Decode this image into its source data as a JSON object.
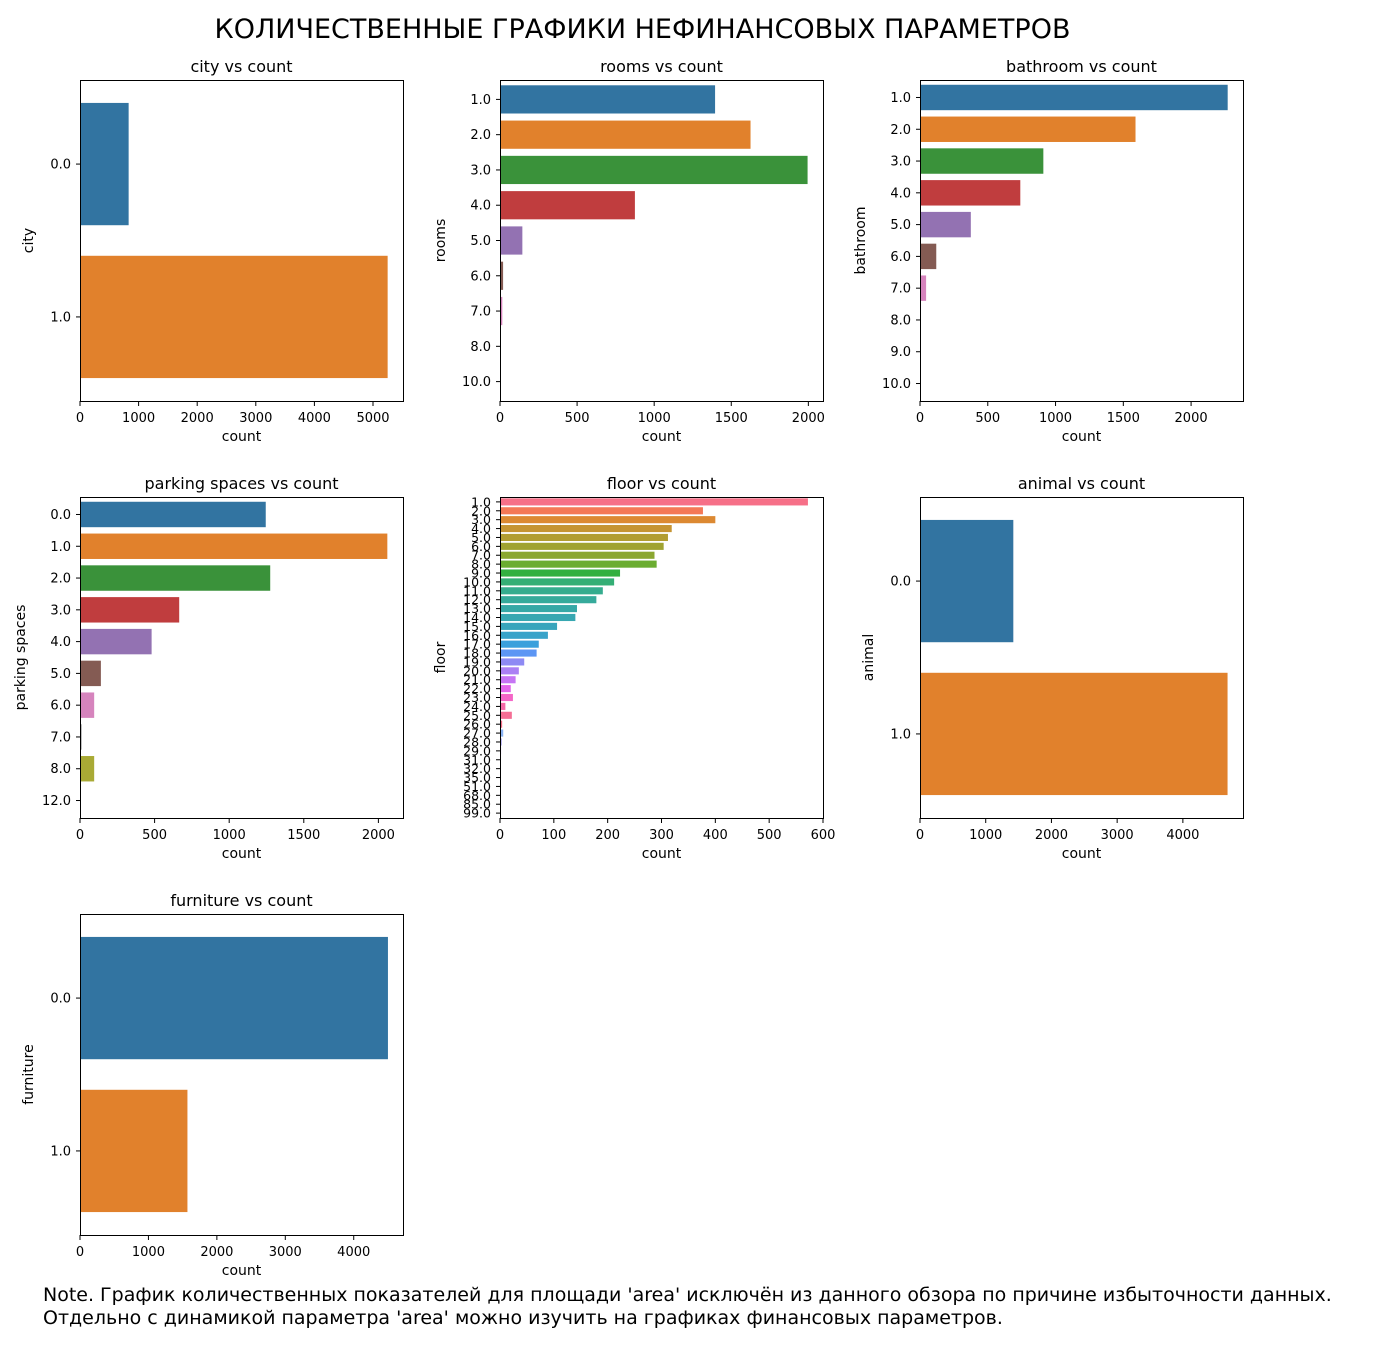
{
  "title": "КОЛИЧЕСТВЕННЫЕ ГРАФИКИ НЕФИНАНСОВЫХ ПАРАМЕТРОВ",
  "note_line1": "Note. График количественных показателей для площади 'area' исключён из данного обзора по причине избыточности данных.",
  "note_line2": "Отдельно с динамикой параметра 'area' можно изучить на графиках финансовых параметров.",
  "chart_data": [
    {
      "type": "bar",
      "orientation": "horizontal",
      "title": "city vs count",
      "xlabel": "count",
      "ylabel": "city",
      "categories": [
        "0.0",
        "1.0"
      ],
      "values": [
        830,
        5250
      ],
      "colors": [
        "#3274a1",
        "#e1812c"
      ],
      "xlim": [
        0,
        5512
      ],
      "xticks": [
        0,
        1000,
        2000,
        3000,
        4000,
        5000
      ],
      "grid": false
    },
    {
      "type": "bar",
      "orientation": "horizontal",
      "title": "rooms vs count",
      "xlabel": "count",
      "ylabel": "rooms",
      "categories": [
        "1.0",
        "2.0",
        "3.0",
        "4.0",
        "5.0",
        "6.0",
        "7.0",
        "8.0",
        "10.0"
      ],
      "values": [
        1395,
        1625,
        1995,
        875,
        145,
        20,
        15,
        3,
        2
      ],
      "colors": [
        "#3274a1",
        "#e1812c",
        "#3a923a",
        "#c03d3e",
        "#9372b2",
        "#845b53",
        "#d684bd",
        "#7f7f7f",
        "#a9aa35"
      ],
      "xlim": [
        0,
        2095
      ],
      "xticks": [
        0,
        500,
        1000,
        1500,
        2000
      ],
      "grid": false
    },
    {
      "type": "bar",
      "orientation": "horizontal",
      "title": "bathroom vs count",
      "xlabel": "count",
      "ylabel": "bathroom",
      "categories": [
        "1.0",
        "2.0",
        "3.0",
        "4.0",
        "5.0",
        "6.0",
        "7.0",
        "8.0",
        "9.0",
        "10.0"
      ],
      "values": [
        2270,
        1590,
        910,
        740,
        375,
        120,
        45,
        3,
        2,
        1
      ],
      "colors": [
        "#3274a1",
        "#e1812c",
        "#3a923a",
        "#c03d3e",
        "#9372b2",
        "#845b53",
        "#d684bd",
        "#7f7f7f",
        "#a9aa35",
        "#2ebece"
      ],
      "xlim": [
        0,
        2383
      ],
      "xticks": [
        0,
        500,
        1000,
        1500,
        2000
      ],
      "grid": false
    },
    {
      "type": "bar",
      "orientation": "horizontal",
      "title": "parking spaces vs count",
      "xlabel": "count",
      "ylabel": "parking spaces",
      "categories": [
        "0.0",
        "1.0",
        "2.0",
        "3.0",
        "4.0",
        "5.0",
        "6.0",
        "7.0",
        "8.0",
        "12.0"
      ],
      "values": [
        1245,
        2060,
        1275,
        665,
        480,
        140,
        95,
        10,
        95,
        2
      ],
      "colors": [
        "#3274a1",
        "#e1812c",
        "#3a923a",
        "#c03d3e",
        "#9372b2",
        "#845b53",
        "#d684bd",
        "#7f7f7f",
        "#a9aa35",
        "#2ebece"
      ],
      "xlim": [
        0,
        2165
      ],
      "xticks": [
        0,
        500,
        1000,
        1500,
        2000
      ],
      "grid": false
    },
    {
      "type": "bar",
      "orientation": "horizontal",
      "title": "floor vs count",
      "xlabel": "count",
      "ylabel": "floor",
      "categories": [
        "1.0",
        "2.0",
        "3.0",
        "4.0",
        "5.0",
        "6.0",
        "7.0",
        "8.0",
        "9.0",
        "10.0",
        "11.0",
        "12.0",
        "13.0",
        "14.0",
        "15.0",
        "16.0",
        "17.0",
        "18.0",
        "19.0",
        "20.0",
        "21.0",
        "22.0",
        "23.0",
        "24.0",
        "25.0",
        "26.0",
        "27.0",
        "28.0",
        "29.0",
        "31.0",
        "32.0",
        "35.0",
        "51.0",
        "68.0",
        "85.0",
        "99.0"
      ],
      "values": [
        572,
        377,
        400,
        319,
        312,
        304,
        287,
        291,
        223,
        212,
        191,
        179,
        143,
        140,
        106,
        89,
        72,
        68,
        45,
        35,
        29,
        20,
        24,
        10,
        22,
        4,
        6,
        3,
        2,
        1,
        1,
        1,
        1,
        1,
        1,
        1
      ],
      "colors": [
        "#f67088",
        "#f47856",
        "#dc8932",
        "#c69432",
        "#b29d31",
        "#a0a331",
        "#8ba731",
        "#6bad31",
        "#33b040",
        "#34ae75",
        "#35ac8e",
        "#36aa9b",
        "#36a8a6",
        "#37a7b1",
        "#38a5bc",
        "#39a3c9",
        "#3aa0dc",
        "#5c96f4",
        "#8e8af4",
        "#ab80f4",
        "#c675f4",
        "#e266ea",
        "#f466c7",
        "#f56aa8",
        "#f56e95",
        "#f56f89",
        "#8bb4f4",
        "#9b96f4",
        "#b58cf4",
        "#cf80f4",
        "#e26fe0",
        "#f36cbd",
        "#f46d9f",
        "#f46e8c",
        "#f57080",
        "#f47174"
      ],
      "xlim": [
        0,
        600
      ],
      "xticks": [
        0,
        100,
        200,
        300,
        400,
        500,
        600
      ],
      "grid": false
    },
    {
      "type": "bar",
      "orientation": "horizontal",
      "title": "animal vs count",
      "xlabel": "count",
      "ylabel": "animal",
      "categories": [
        "0.0",
        "1.0"
      ],
      "values": [
        1420,
        4680
      ],
      "colors": [
        "#3274a1",
        "#e1812c"
      ],
      "xlim": [
        0,
        4915
      ],
      "xticks": [
        0,
        1000,
        2000,
        3000,
        4000
      ],
      "grid": false
    },
    {
      "type": "bar",
      "orientation": "horizontal",
      "title": "furniture vs count",
      "xlabel": "count",
      "ylabel": "furniture",
      "categories": [
        "0.0",
        "1.0"
      ],
      "values": [
        4500,
        1570
      ],
      "colors": [
        "#3274a1",
        "#e1812c"
      ],
      "xlim": [
        0,
        4720
      ],
      "xticks": [
        0,
        1000,
        2000,
        3000,
        4000
      ],
      "grid": false
    }
  ]
}
